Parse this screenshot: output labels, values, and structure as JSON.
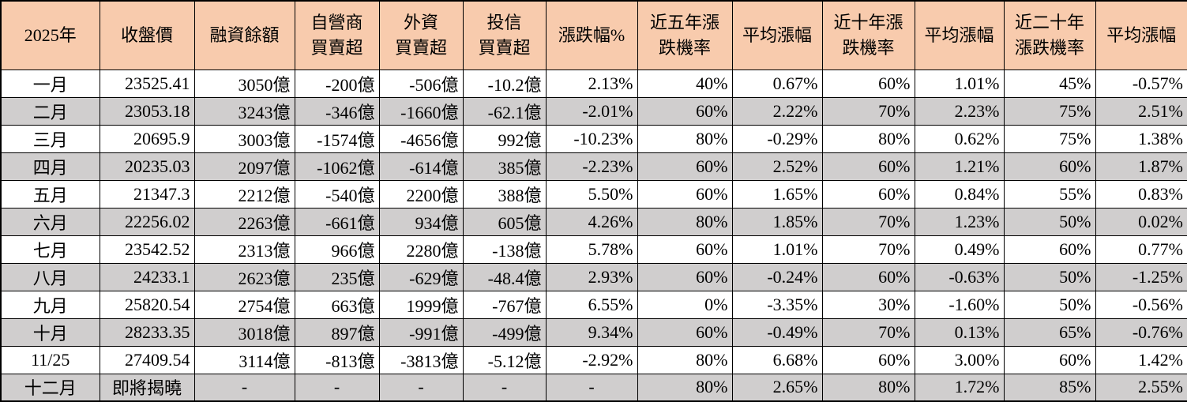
{
  "table": {
    "title": "2025 monthly market statistics",
    "colors": {
      "header_bg": "#F8CBAD",
      "stripe_bg": "#D0CECE",
      "row_bg": "#FFFFFF",
      "border": "#000000",
      "text": "#000000"
    },
    "headers": [
      {
        "label": "2025年",
        "lines": [
          "2025年"
        ]
      },
      {
        "label": "收盤價",
        "lines": [
          "收盤價"
        ]
      },
      {
        "label": "融資餘額",
        "lines": [
          "融資餘額"
        ]
      },
      {
        "label": "自營商買賣超",
        "lines": [
          "自營商",
          "買賣超"
        ]
      },
      {
        "label": "外資買賣超",
        "lines": [
          "外資",
          "買賣超"
        ]
      },
      {
        "label": "投信買賣超",
        "lines": [
          "投信",
          "買賣超"
        ]
      },
      {
        "label": "漲跌幅%",
        "lines": [
          "漲跌幅%"
        ]
      },
      {
        "label": "近五年漲跌機率",
        "lines": [
          "近五年漲",
          "跌機率"
        ]
      },
      {
        "label": "平均漲幅",
        "lines": [
          "平均漲幅"
        ]
      },
      {
        "label": "近十年漲跌機率",
        "lines": [
          "近十年漲",
          "跌機率"
        ]
      },
      {
        "label": "平均漲幅",
        "lines": [
          "平均漲幅"
        ]
      },
      {
        "label": "近二十年漲跌機率",
        "lines": [
          "近二十年",
          "漲跌機率"
        ]
      },
      {
        "label": "平均漲幅",
        "lines": [
          "平均漲幅"
        ]
      }
    ],
    "rows": [
      [
        "一月",
        "23525.41",
        "3050億",
        "-200億",
        "-506億",
        "-10.2億",
        "2.13%",
        "40%",
        "0.67%",
        "60%",
        "1.01%",
        "45%",
        "-0.57%"
      ],
      [
        "二月",
        "23053.18",
        "3243億",
        "-346億",
        "-1660億",
        "-62.1億",
        "-2.01%",
        "60%",
        "2.22%",
        "70%",
        "2.23%",
        "75%",
        "2.51%"
      ],
      [
        "三月",
        "20695.9",
        "3003億",
        "-1574億",
        "-4656億",
        "992億",
        "-10.23%",
        "80%",
        "-0.29%",
        "80%",
        "0.62%",
        "75%",
        "1.38%"
      ],
      [
        "四月",
        "20235.03",
        "2097億",
        "-1062億",
        "-614億",
        "385億",
        "-2.23%",
        "60%",
        "2.52%",
        "60%",
        "1.21%",
        "60%",
        "1.87%"
      ],
      [
        "五月",
        "21347.3",
        "2212億",
        "-540億",
        "2200億",
        "388億",
        "5.50%",
        "60%",
        "1.65%",
        "60%",
        "0.84%",
        "55%",
        "0.83%"
      ],
      [
        "六月",
        "22256.02",
        "2263億",
        "-661億",
        "934億",
        "605億",
        "4.26%",
        "80%",
        "1.85%",
        "70%",
        "1.23%",
        "50%",
        "0.02%"
      ],
      [
        "七月",
        "23542.52",
        "2313億",
        "966億",
        "2280億",
        "-138億",
        "5.78%",
        "60%",
        "1.01%",
        "70%",
        "0.49%",
        "60%",
        "0.77%"
      ],
      [
        "八月",
        "24233.1",
        "2623億",
        "235億",
        "-629億",
        "-48.4億",
        "2.93%",
        "60%",
        "-0.24%",
        "60%",
        "-0.63%",
        "50%",
        "-1.25%"
      ],
      [
        "九月",
        "25820.54",
        "2754億",
        "663億",
        "1999億",
        "-767億",
        "6.55%",
        "0%",
        "-3.35%",
        "30%",
        "-1.60%",
        "50%",
        "-0.56%"
      ],
      [
        "十月",
        "28233.35",
        "3018億",
        "897億",
        "-991億",
        "-499億",
        "9.34%",
        "60%",
        "-0.49%",
        "70%",
        "0.13%",
        "65%",
        "-0.76%"
      ],
      [
        "11/25",
        "27409.54",
        "3114億",
        "-813億",
        "-3813億",
        "-5.12億",
        "-2.92%",
        "80%",
        "6.68%",
        "60%",
        "3.00%",
        "60%",
        "1.42%"
      ],
      [
        "十二月",
        "即將揭曉",
        "-",
        "-",
        "-",
        "-",
        "-",
        "80%",
        "2.65%",
        "80%",
        "1.72%",
        "85%",
        "2.55%"
      ]
    ]
  }
}
